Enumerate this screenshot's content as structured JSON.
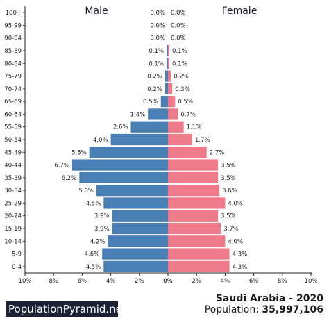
{
  "chart_data": {
    "type": "bar",
    "subtype": "population-pyramid",
    "categories": [
      "0-4",
      "5-9",
      "10-14",
      "15-19",
      "20-24",
      "25-29",
      "30-34",
      "35-39",
      "40-44",
      "45-49",
      "50-54",
      "55-59",
      "60-64",
      "65-69",
      "70-74",
      "75-79",
      "80-84",
      "85-89",
      "90-94",
      "95-99",
      "100+"
    ],
    "series": [
      {
        "name": "Male",
        "color": "#4a7fb5",
        "values": [
          4.5,
          4.6,
          4.2,
          3.9,
          3.9,
          4.5,
          5.0,
          6.2,
          6.7,
          5.5,
          4.0,
          2.6,
          1.4,
          0.5,
          0.2,
          0.2,
          0.1,
          0.1,
          0.0,
          0.0,
          0.0
        ],
        "labels": [
          "4.5%",
          "4.6%",
          "4.2%",
          "3.9%",
          "3.9%",
          "4.5%",
          "5.0%",
          "6.2%",
          "6.7%",
          "5.5%",
          "4.0%",
          "2.6%",
          "1.4%",
          "0.5%",
          "0.2%",
          "0.2%",
          "0.1%",
          "0.1%",
          "0.0%",
          "0.0%",
          "0.0%"
        ]
      },
      {
        "name": "Female",
        "color": "#ee7a8a",
        "values": [
          4.3,
          4.3,
          4.0,
          3.7,
          3.5,
          4.0,
          3.6,
          3.5,
          3.5,
          2.7,
          1.7,
          1.1,
          0.7,
          0.5,
          0.3,
          0.2,
          0.1,
          0.1,
          0.0,
          0.0,
          0.0
        ],
        "labels": [
          "4.3%",
          "4.3%",
          "4.0%",
          "3.7%",
          "3.5%",
          "4.0%",
          "3.6%",
          "3.5%",
          "3.5%",
          "2.7%",
          "1.7%",
          "1.1%",
          "0.7%",
          "0.5%",
          "0.3%",
          "0.2%",
          "0.1%",
          "0.1%",
          "0.0%",
          "0.0%",
          "0.0%"
        ]
      }
    ],
    "xlim": [
      0,
      10
    ],
    "xticks_left": [
      "10%",
      "8%",
      "6%",
      "4%",
      "2%",
      "0%"
    ],
    "xticks_right": [
      "0%",
      "2%",
      "4%",
      "6%",
      "8%",
      "10%"
    ],
    "male_heading": "Male",
    "female_heading": "Female"
  },
  "footer": {
    "brand": "PopulationPyramid.net",
    "title": "Saudi Arabia - 2020",
    "population_label": "Population: ",
    "population_value": "35,997,106"
  }
}
